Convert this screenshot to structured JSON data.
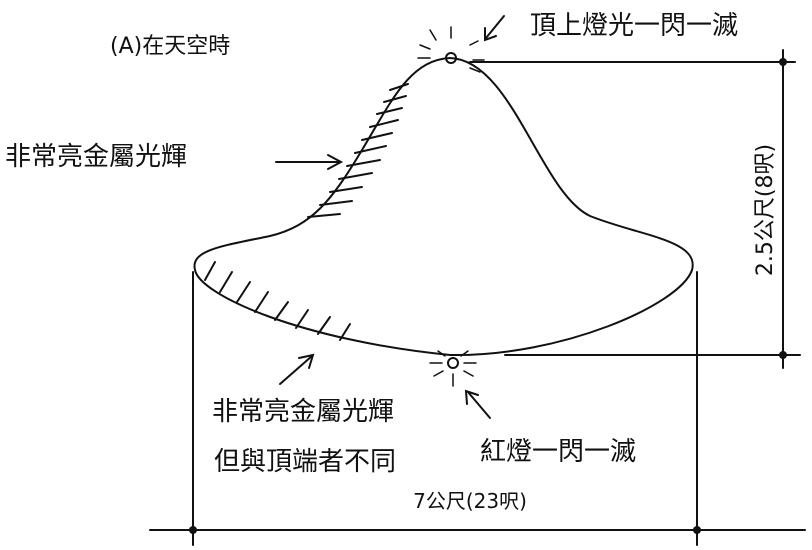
{
  "title": "(A)在天空時",
  "labels": {
    "top_light": "頂上燈光一閃一滅",
    "upper_surface": "非常亮金屬光輝",
    "height": "2.5公尺(8呎)",
    "lower_surface": [
      "非常亮金屬光輝",
      "但與頂端者不同"
    ],
    "red_light": "紅燈一閃一滅",
    "width": "7公尺(23呎)"
  }
}
